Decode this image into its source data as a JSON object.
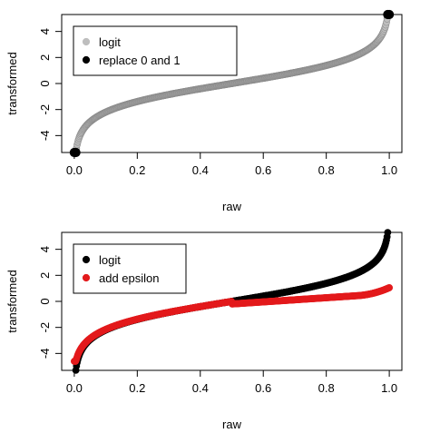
{
  "chart_data": [
    {
      "type": "scatter",
      "xlabel": "raw",
      "ylabel": "transformed",
      "xlim": [
        0,
        1
      ],
      "ylim": [
        -5.3,
        5.3
      ],
      "xticks": [
        "0.0",
        "0.2",
        "0.4",
        "0.6",
        "0.8",
        "1.0"
      ],
      "yticks": [
        "-4",
        "-2",
        "0",
        "2",
        "4"
      ],
      "legend_position": "top-left",
      "grid": false,
      "series": [
        {
          "name": "logit",
          "color": "#bebebe",
          "function": "logit",
          "x_range": [
            0.005,
            0.995
          ],
          "n_points": 500
        },
        {
          "name": "replace 0 and 1",
          "color": "#000000",
          "points": [
            [
              0,
              -5.3
            ],
            [
              0.005,
              -5.3
            ],
            [
              1,
              5.3
            ],
            [
              0.995,
              5.3
            ]
          ]
        }
      ]
    },
    {
      "type": "scatter",
      "xlabel": "raw",
      "ylabel": "transformed",
      "xlim": [
        0,
        1
      ],
      "ylim": [
        -5.3,
        5.3
      ],
      "xticks": [
        "0.0",
        "0.2",
        "0.4",
        "0.6",
        "0.8",
        "1.0"
      ],
      "yticks": [
        "-4",
        "-2",
        "0",
        "2",
        "4"
      ],
      "legend_position": "top-left",
      "grid": false,
      "series": [
        {
          "name": "logit",
          "color": "#000000",
          "function": "logit",
          "x_range": [
            0.005,
            0.995
          ],
          "n_points": 500
        },
        {
          "name": "add epsilon",
          "color": "#e31a1c",
          "function": "logit_epsilon",
          "epsilon": 0.33,
          "x_range": [
            0,
            1
          ],
          "n_points": 500
        }
      ]
    }
  ]
}
